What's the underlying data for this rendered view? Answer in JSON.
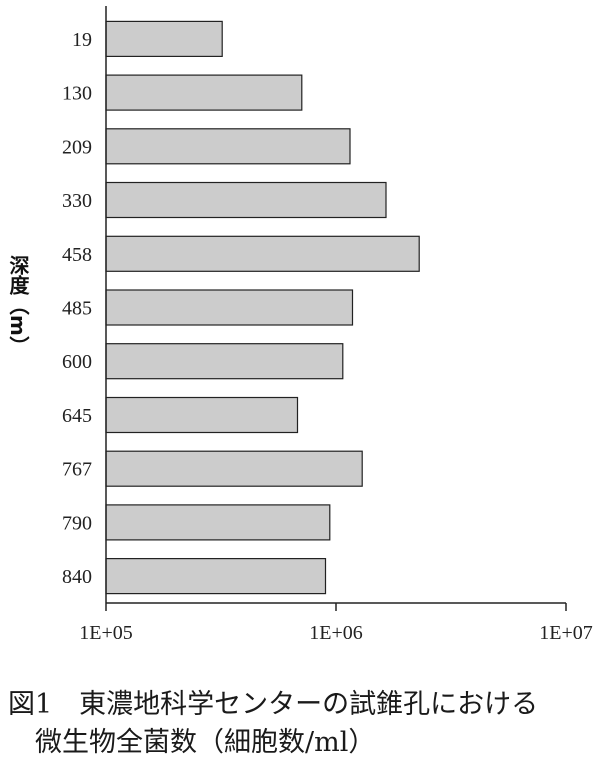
{
  "chart_data": {
    "type": "bar",
    "orientation": "horizontal",
    "categories": [
      "19",
      "130",
      "209",
      "330",
      "458",
      "485",
      "600",
      "645",
      "767",
      "790",
      "840"
    ],
    "values": [
      320000,
      710000,
      1150000,
      1650000,
      2300000,
      1180000,
      1070000,
      680000,
      1300000,
      940000,
      900000
    ],
    "ylabel": "深度（m）",
    "xlabel": "",
    "xscale": "log",
    "xlim": [
      100000,
      10000000
    ],
    "xticks": [
      "1E+05",
      "1E+06",
      "1E+07"
    ],
    "grid": false,
    "bar_color": "#cccccc",
    "bar_edge_color": "#222222"
  },
  "caption": {
    "line1": "図1　東濃地科学センターの試錐孔における",
    "line2": "微生物全菌数（細胞数/ml）"
  }
}
